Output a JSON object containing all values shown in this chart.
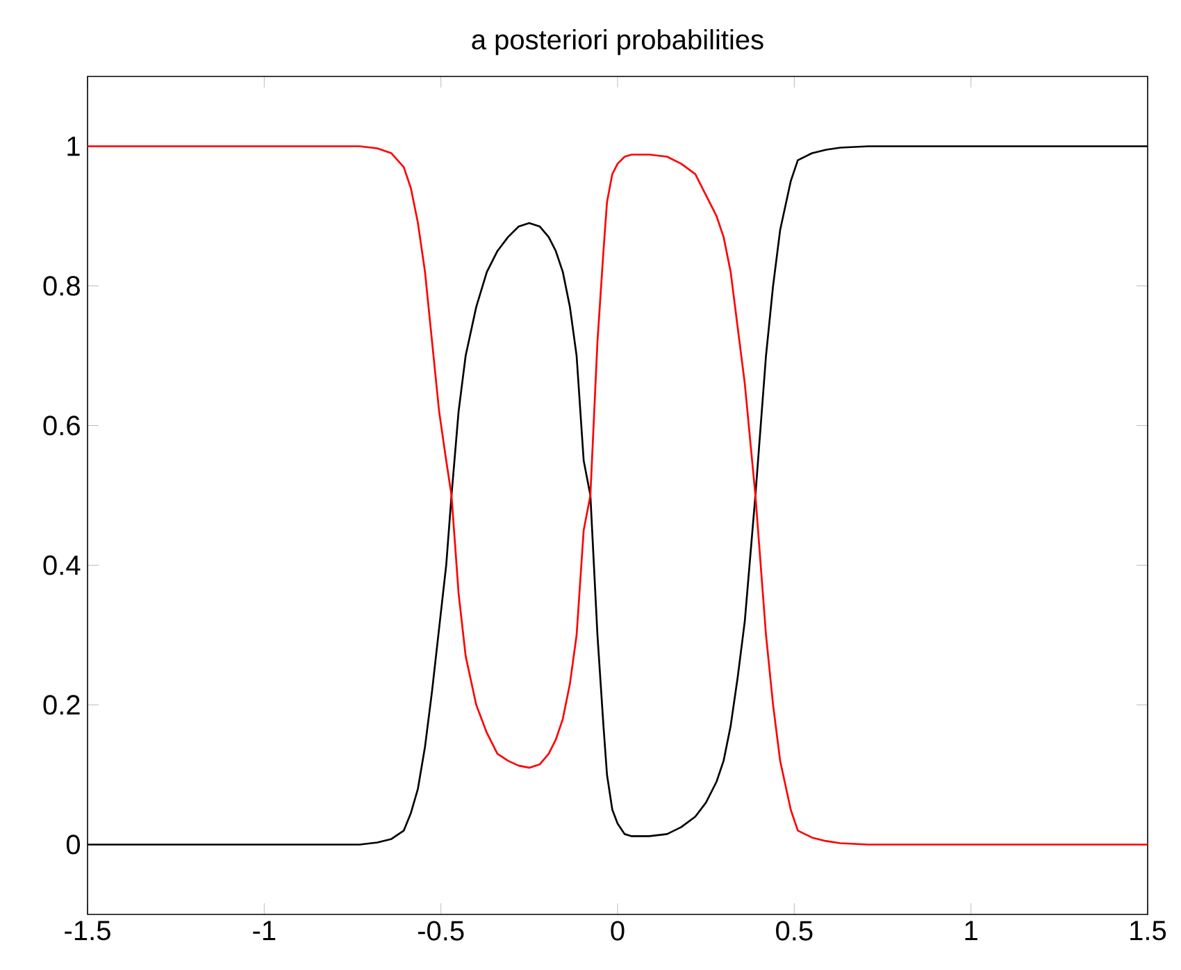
{
  "chart_data": {
    "type": "line",
    "title": "a posteriori probabilities",
    "x": [
      -1.5,
      -0.73,
      -0.68,
      -0.64,
      -0.605,
      -0.585,
      -0.565,
      -0.545,
      -0.525,
      -0.505,
      -0.485,
      -0.47,
      -0.45,
      -0.43,
      -0.4,
      -0.37,
      -0.34,
      -0.31,
      -0.28,
      -0.25,
      -0.22,
      -0.195,
      -0.175,
      -0.155,
      -0.135,
      -0.116,
      -0.096,
      -0.077,
      -0.057,
      -0.04,
      -0.03,
      -0.015,
      0,
      0.02,
      0.04,
      0.09,
      0.14,
      0.18,
      0.22,
      0.25,
      0.28,
      0.3,
      0.32,
      0.34,
      0.36,
      0.39,
      0.42,
      0.44,
      0.46,
      0.49,
      0.51,
      0.55,
      0.59,
      0.63,
      0.71,
      1.5
    ],
    "series": [
      {
        "color": "#000000",
        "values": [
          0,
          0,
          0.003,
          0.008,
          0.02,
          0.045,
          0.08,
          0.14,
          0.22,
          0.31,
          0.4,
          0.5,
          0.62,
          0.7,
          0.77,
          0.82,
          0.85,
          0.87,
          0.885,
          0.89,
          0.885,
          0.87,
          0.85,
          0.82,
          0.77,
          0.7,
          0.55,
          0.5,
          0.3,
          0.17,
          0.1,
          0.05,
          0.03,
          0.015,
          0.012,
          0.012,
          0.015,
          0.025,
          0.04,
          0.06,
          0.09,
          0.12,
          0.17,
          0.24,
          0.32,
          0.5,
          0.7,
          0.8,
          0.88,
          0.95,
          0.98,
          0.99,
          0.995,
          0.998,
          1,
          1
        ]
      },
      {
        "color": "#ff0000",
        "values": [
          1,
          1,
          0.997,
          0.99,
          0.97,
          0.94,
          0.89,
          0.82,
          0.72,
          0.62,
          0.55,
          0.5,
          0.36,
          0.27,
          0.2,
          0.16,
          0.13,
          0.12,
          0.113,
          0.11,
          0.115,
          0.13,
          0.15,
          0.18,
          0.23,
          0.3,
          0.45,
          0.5,
          0.72,
          0.85,
          0.92,
          0.96,
          0.975,
          0.985,
          0.988,
          0.988,
          0.985,
          0.975,
          0.96,
          0.93,
          0.9,
          0.87,
          0.82,
          0.74,
          0.66,
          0.5,
          0.3,
          0.2,
          0.12,
          0.05,
          0.02,
          0.01,
          0.005,
          0.002,
          0,
          0
        ]
      }
    ],
    "xlim": [
      -1.5,
      1.5
    ],
    "xticks": [
      -1.5,
      -1,
      -0.5,
      0,
      0.5,
      1,
      1.5
    ],
    "ylim": [
      -0.1,
      1.1
    ],
    "yticks": [
      0,
      0.2,
      0.4,
      0.6,
      0.8,
      1
    ],
    "grid": false
  }
}
